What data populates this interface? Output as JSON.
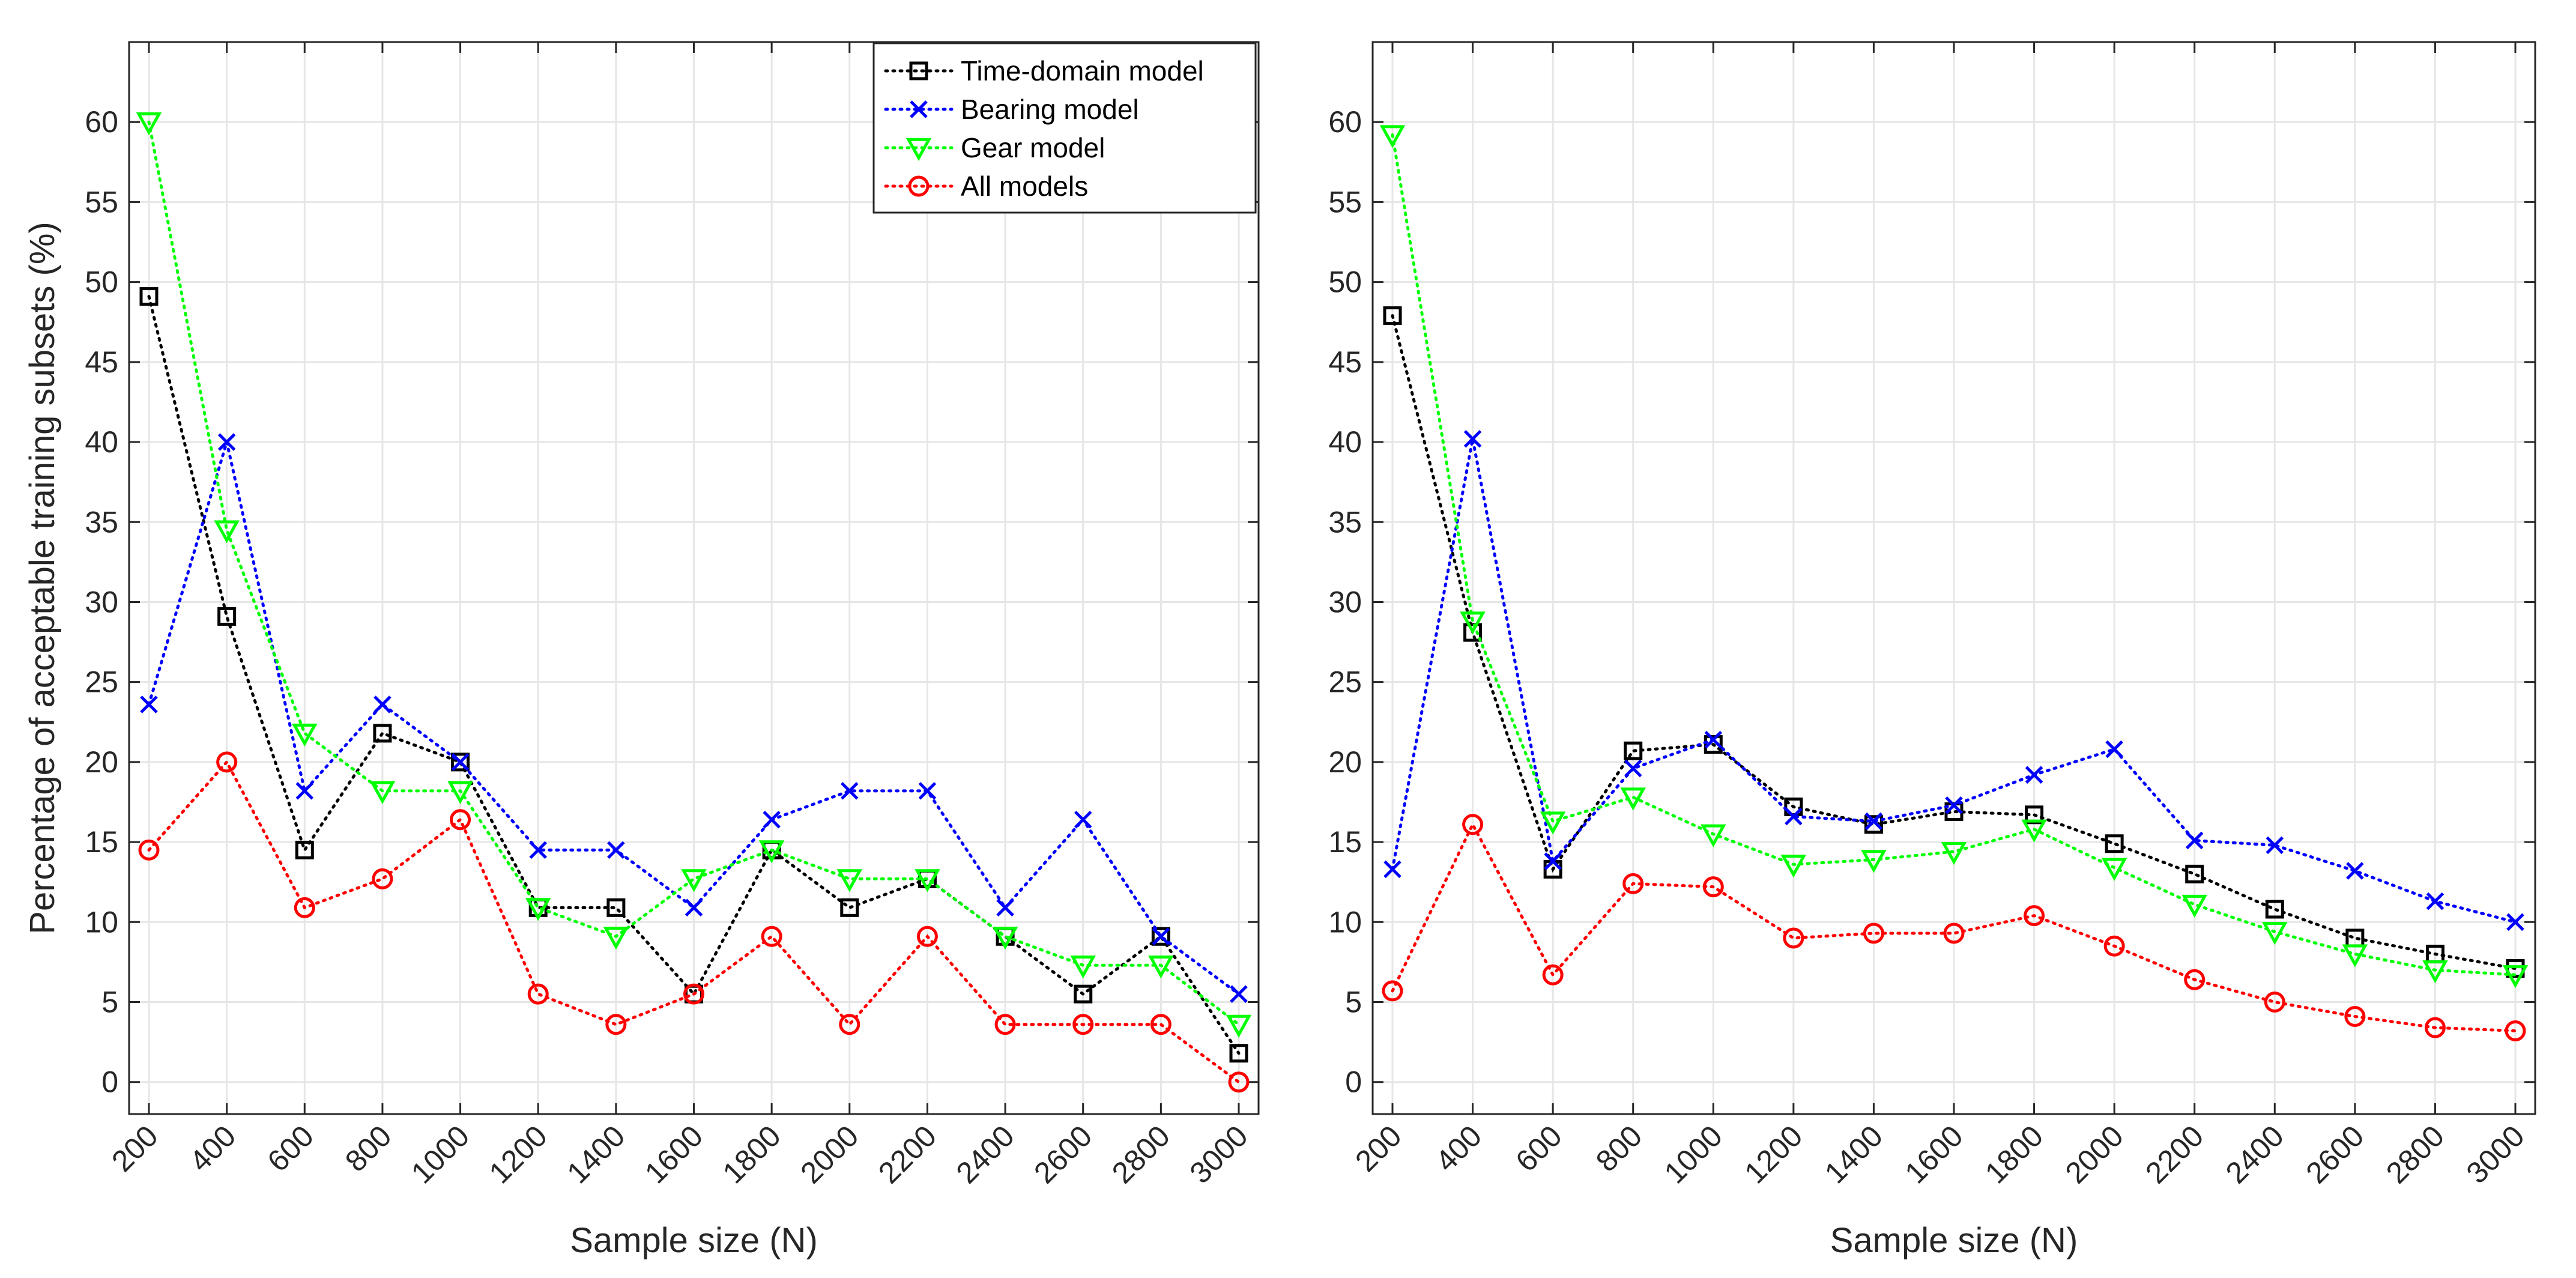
{
  "chart_data": [
    {
      "type": "line",
      "panel": "left",
      "title": "",
      "xlabel": "Sample size (N)",
      "ylabel": "Percentage of acceptable training subsets (%)",
      "x": [
        200,
        400,
        600,
        800,
        1000,
        1200,
        1400,
        1600,
        1800,
        2000,
        2200,
        2400,
        2600,
        2800,
        3000
      ],
      "xticks": [
        "200",
        "400",
        "600",
        "800",
        "1000",
        "1200",
        "1400",
        "1600",
        "1800",
        "2000",
        "2200",
        "2400",
        "2600",
        "2800",
        "3000"
      ],
      "yticks": [
        "0",
        "5",
        "10",
        "15",
        "20",
        "25",
        "30",
        "35",
        "40",
        "45",
        "50",
        "55",
        "60"
      ],
      "ylim": [
        -2,
        65
      ],
      "grid": true,
      "legend_position": "top-right",
      "series": [
        {
          "name": "Time-domain model",
          "color": "#000000",
          "marker": "square",
          "values": [
            49.1,
            29.1,
            14.5,
            21.8,
            20.0,
            10.9,
            10.9,
            5.5,
            14.5,
            10.9,
            12.7,
            9.1,
            5.5,
            9.1,
            1.8
          ]
        },
        {
          "name": "Bearing model",
          "color": "#0000ff",
          "marker": "x",
          "values": [
            23.6,
            40.0,
            18.2,
            23.6,
            20.0,
            14.5,
            14.5,
            10.9,
            16.4,
            18.2,
            18.2,
            10.9,
            16.4,
            9.1,
            5.5
          ]
        },
        {
          "name": "Gear model",
          "color": "#00ff00",
          "marker": "triangle-down",
          "values": [
            60.0,
            34.5,
            21.8,
            18.2,
            18.2,
            10.9,
            9.1,
            12.7,
            14.5,
            12.7,
            12.7,
            9.1,
            7.3,
            7.3,
            3.6
          ]
        },
        {
          "name": "All models",
          "color": "#ff0000",
          "marker": "circle",
          "values": [
            14.5,
            20.0,
            10.9,
            12.7,
            16.4,
            5.5,
            3.6,
            5.5,
            9.1,
            3.6,
            9.1,
            3.6,
            3.6,
            3.6,
            0.0
          ]
        }
      ]
    },
    {
      "type": "line",
      "panel": "right",
      "title": "",
      "xlabel": "Sample size (N)",
      "ylabel": "",
      "x": [
        200,
        400,
        600,
        800,
        1000,
        1200,
        1400,
        1600,
        1800,
        2000,
        2200,
        2400,
        2600,
        2800,
        3000
      ],
      "xticks": [
        "200",
        "400",
        "600",
        "800",
        "1000",
        "1200",
        "1400",
        "1600",
        "1800",
        "2000",
        "2200",
        "2400",
        "2600",
        "2800",
        "3000"
      ],
      "yticks": [
        "0",
        "5",
        "10",
        "15",
        "20",
        "25",
        "30",
        "35",
        "40",
        "45",
        "50",
        "55",
        "60"
      ],
      "ylim": [
        -2,
        65
      ],
      "grid": true,
      "series": [
        {
          "name": "Time-domain model",
          "color": "#000000",
          "marker": "square",
          "values": [
            47.9,
            28.1,
            13.3,
            20.7,
            21.1,
            17.2,
            16.1,
            16.9,
            16.7,
            14.9,
            13.0,
            10.8,
            9.0,
            8.0,
            7.1
          ]
        },
        {
          "name": "Bearing model",
          "color": "#0000ff",
          "marker": "x",
          "values": [
            13.3,
            40.2,
            13.8,
            19.6,
            21.4,
            16.6,
            16.3,
            17.3,
            19.2,
            20.8,
            15.1,
            14.8,
            13.2,
            11.3,
            10.0
          ]
        },
        {
          "name": "Gear model",
          "color": "#00ff00",
          "marker": "triangle-down",
          "values": [
            59.2,
            28.8,
            16.3,
            17.8,
            15.5,
            13.6,
            13.9,
            14.4,
            15.8,
            13.4,
            11.1,
            9.4,
            8.0,
            7.0,
            6.7
          ]
        },
        {
          "name": "All models",
          "color": "#ff0000",
          "marker": "circle",
          "values": [
            5.7,
            16.1,
            6.7,
            12.4,
            12.2,
            9.0,
            9.3,
            9.3,
            10.4,
            8.5,
            6.4,
            5.0,
            4.1,
            3.4,
            3.2
          ]
        }
      ]
    }
  ]
}
